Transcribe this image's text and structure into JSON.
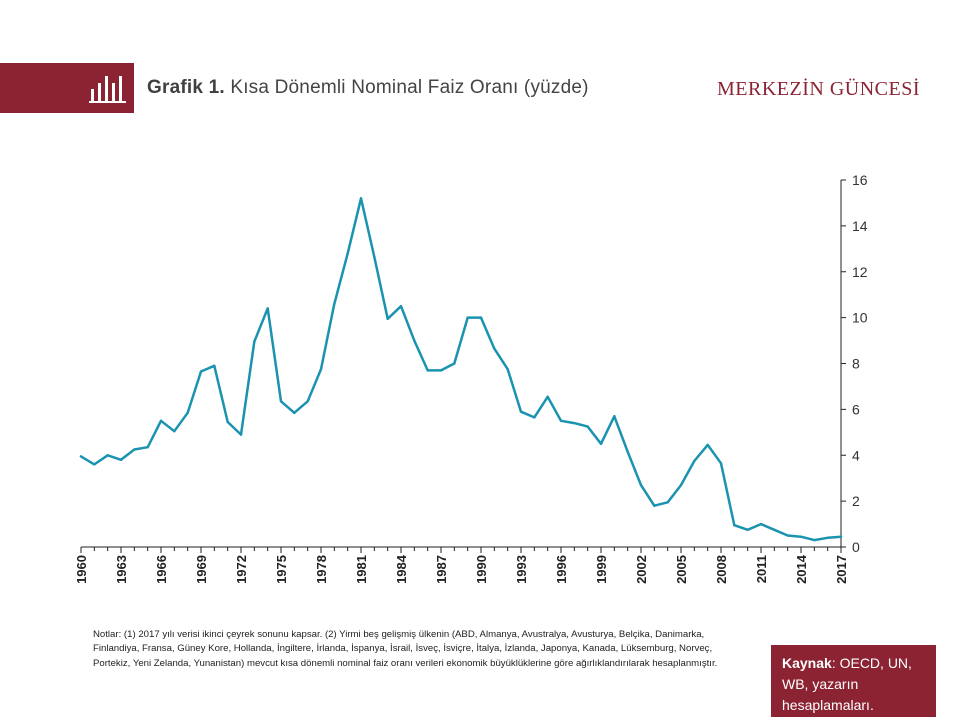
{
  "header": {
    "prefix": "Grafik 1.",
    "title": " Kısa Dönemli Nominal Faiz Oranı (yüzde)",
    "brand": "MERKEZİN GÜNCESİ",
    "icon": "bar-chart-icon"
  },
  "colors": {
    "accent": "#8b2332",
    "line": "#1a93b0",
    "axis": "#222222"
  },
  "chart_data": {
    "type": "line",
    "title": "",
    "xlabel": "",
    "ylabel": "",
    "ylim": [
      0,
      16
    ],
    "xlim": [
      1960,
      2017
    ],
    "y_axis_position": "right",
    "grid": false,
    "yticks": [
      0,
      2,
      4,
      6,
      8,
      10,
      12,
      14,
      16
    ],
    "xticks": [
      1960,
      1963,
      1966,
      1969,
      1972,
      1975,
      1978,
      1981,
      1984,
      1987,
      1990,
      1993,
      1996,
      1999,
      2002,
      2005,
      2008,
      2011,
      2014,
      2017
    ],
    "series": [
      {
        "x": [
          1960,
          1961,
          1962,
          1963,
          1964,
          1965,
          1966,
          1967,
          1968,
          1969,
          1970,
          1971,
          1972,
          1973,
          1974,
          1975,
          1976,
          1977,
          1978,
          1979,
          1980,
          1981,
          1982,
          1983,
          1984,
          1985,
          1986,
          1987,
          1988,
          1989,
          1990,
          1991,
          1992,
          1993,
          1994,
          1995,
          1996,
          1997,
          1998,
          1999,
          2000,
          2001,
          2002,
          2003,
          2004,
          2005,
          2006,
          2007,
          2008,
          2009,
          2010,
          2011,
          2012,
          2013,
          2014,
          2015,
          2016,
          2017
        ],
        "y": [
          3.95,
          3.6,
          4.0,
          3.8,
          4.25,
          4.35,
          5.5,
          5.05,
          5.85,
          7.65,
          7.9,
          5.45,
          4.9,
          8.95,
          10.4,
          6.35,
          5.85,
          6.35,
          7.75,
          10.6,
          12.8,
          15.2,
          12.65,
          9.95,
          10.5,
          9.0,
          7.7,
          7.7,
          8.0,
          10.0,
          10.0,
          8.65,
          7.75,
          5.9,
          5.65,
          6.55,
          5.5,
          5.4,
          5.25,
          4.5,
          5.7,
          4.15,
          2.7,
          1.8,
          1.95,
          2.7,
          3.75,
          4.45,
          3.65,
          0.95,
          0.75,
          1.0,
          0.75,
          0.5,
          0.45,
          0.3,
          0.4,
          0.45
        ]
      }
    ]
  },
  "notes": "Notlar: (1) 2017 yılı verisi ikinci çeyrek sonunu kapsar. (2) Yirmi beş gelişmiş ülkenin (ABD, Almanya, Avustralya, Avusturya, Belçika, Danimarka, Finlandiya, Fransa, Güney Kore, Hollanda, İngiltere, İrlanda, İspanya, İsrail, İsveç, İsviçre, İtalya, İzlanda, Japonya, Kanada, Lüksemburg, Norveç, Portekiz, Yeni Zelanda, Yunanistan) mevcut kısa dönemli nominal faiz oranı verileri ekonomik büyüklüklerine göre ağırlıklandırılarak hesaplanmıştır.",
  "source": {
    "label": "Kaynak",
    "text": ": OECD, UN, WB, yazarın hesaplamaları."
  }
}
